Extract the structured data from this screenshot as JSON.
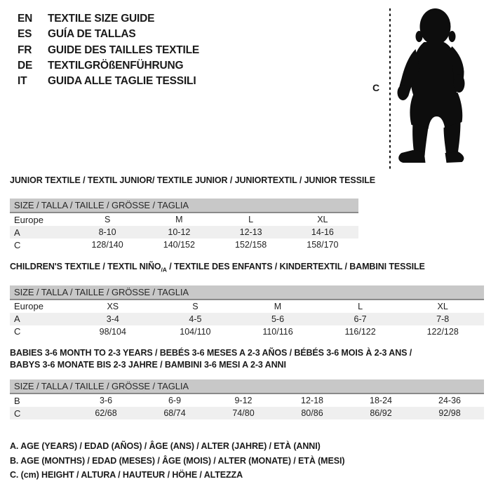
{
  "languages": [
    {
      "code": "EN",
      "label": "TEXTILE SIZE GUIDE"
    },
    {
      "code": "ES",
      "label": "GUÍA DE TALLAS"
    },
    {
      "code": "FR",
      "label": "GUIDE DES TAILLES TEXTILE"
    },
    {
      "code": "DE",
      "label": "TEXTILGRÖßENFÜHRUNG"
    },
    {
      "code": "IT",
      "label": "GUIDA ALLE TAGLIE TESSILI"
    }
  ],
  "figure": {
    "label": "C",
    "icon": "toddler-silhouette"
  },
  "colors": {
    "header_bar": "#c8c8c8",
    "shaded_row": "#efefef",
    "bar_border": "#8a8a8a",
    "text": "#1a1a1a"
  },
  "tables": [
    {
      "name": "junior",
      "title_lines": [
        [
          {
            "t": "JUNIOR TEXTILE / TEXTIL JUNIOR/ TEXTILE JUNIOR / JUNIORTEXTIL / JUNIOR TESSILE"
          }
        ]
      ],
      "header": "SIZE / TALLA / TAILLE / GRÖSSE / TAGLIA",
      "rows": [
        {
          "label": "Europe",
          "cells": [
            "S",
            "M",
            "L",
            "XL"
          ],
          "shaded": false
        },
        {
          "label": "A",
          "cells": [
            "8-10",
            "10-12",
            "12-13",
            "14-16"
          ],
          "shaded": true
        },
        {
          "label": "C",
          "cells": [
            "128/140",
            "140/152",
            "152/158",
            "158/170"
          ],
          "shaded": false
        }
      ]
    },
    {
      "name": "children",
      "title_lines": [
        [
          {
            "t": "CHILDREN'S TEXTILE / TEXTIL NIÑO"
          },
          {
            "t": "/A",
            "sub": true
          },
          {
            "t": " / TEXTILE DES ENFANTS / KINDERTEXTIL / BAMBINI TESSILE"
          }
        ]
      ],
      "header": "SIZE / TALLA / TAILLE / GRÖSSE / TAGLIA",
      "rows": [
        {
          "label": "Europe",
          "cells": [
            "XS",
            "S",
            "M",
            "L",
            "XL"
          ],
          "shaded": false
        },
        {
          "label": "A",
          "cells": [
            "3-4",
            "4-5",
            "5-6",
            "6-7",
            "7-8"
          ],
          "shaded": true
        },
        {
          "label": "C",
          "cells": [
            "98/104",
            "104/110",
            "110/116",
            "116/122",
            "122/128"
          ],
          "shaded": false
        }
      ]
    },
    {
      "name": "babies",
      "title_lines": [
        [
          {
            "t": "BABIES 3-6 MONTH TO 2-3 YEARS / BEBÉS 3-6 MESES A 2-3 AÑOS / BÉBÉS 3-6 MOIS À 2-3 ANS /"
          }
        ],
        [
          {
            "t": "BABYS 3-6 MONATE BIS 2-3 JAHRE / BAMBINI 3-6 MESI A 2-3 ANNI"
          }
        ]
      ],
      "header": "SIZE / TALLA / TAILLE / GRÖSSE / TAGLIA",
      "rows": [
        {
          "label": "B",
          "cells": [
            "3-6",
            "6-9",
            "9-12",
            "12-18",
            "18-24",
            "24-36"
          ],
          "shaded": false
        },
        {
          "label": "C",
          "cells": [
            "62/68",
            "68/74",
            "74/80",
            "80/86",
            "86/92",
            "92/98"
          ],
          "shaded": true
        }
      ]
    }
  ],
  "legend": [
    "A. AGE (YEARS) / EDAD (AÑOS) / ÂGE (ANS) / ALTER (JAHRE) / ETÀ (ANNI)",
    "B. AGE (MONTHS) / EDAD (MESES) / ÂGE (MOIS) / ALTER (MONATE) / ETÀ (MESI)",
    "C. (cm) HEIGHT / ALTURA / HAUTEUR / HÖHE / ALTEZZA"
  ]
}
